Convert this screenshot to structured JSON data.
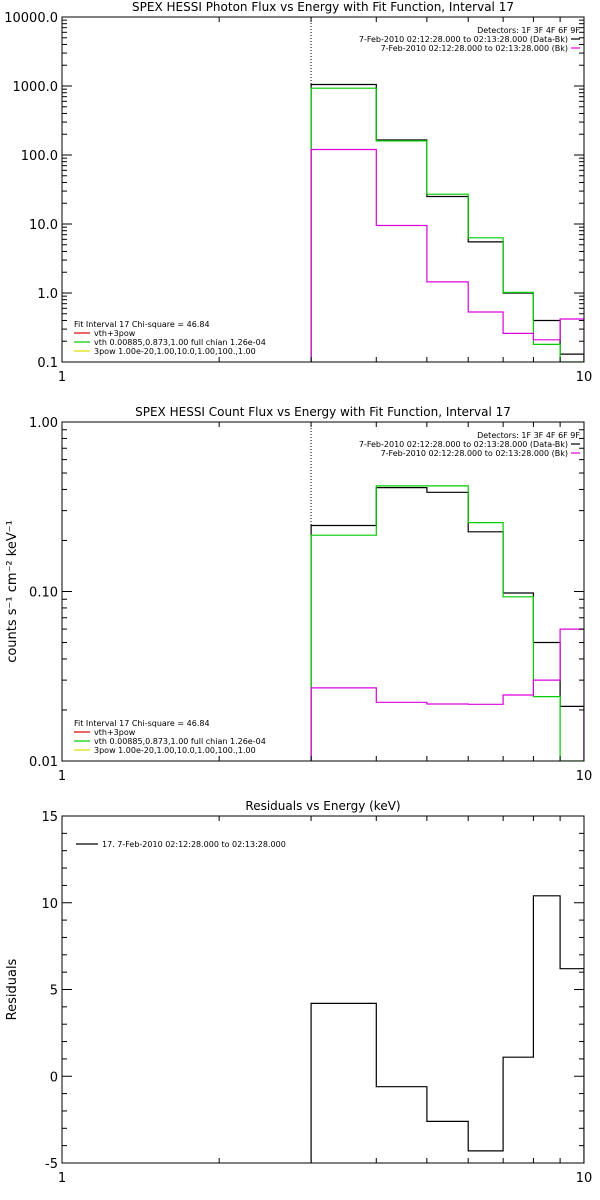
{
  "chart_data": [
    {
      "type": "line",
      "title": "SPEX HESSI Photon Flux vs Energy with Fit Function, Interval 17",
      "xscale": "log",
      "yscale": "log",
      "xlim": [
        1,
        10
      ],
      "ylim": [
        0.1,
        10000
      ],
      "xticklabels": [
        {
          "v": 1,
          "t": "1"
        },
        {
          "v": 10,
          "t": "10"
        }
      ],
      "yticklabels": [
        {
          "v": 0.1,
          "t": "0.1"
        },
        {
          "v": 1,
          "t": "1.0"
        },
        {
          "v": 10,
          "t": "10.0"
        },
        {
          "v": 100,
          "t": "100.0"
        },
        {
          "v": 1000,
          "t": "1000.0"
        },
        {
          "v": 10000,
          "t": "10000.0"
        }
      ],
      "ylabel": "",
      "xline": 3,
      "legend_tr": [
        {
          "text": "Detectors: 1F 3F 4F 6F 9F",
          "color": ""
        },
        {
          "text": "7-Feb-2010 02:12:28.000 to 02:13:28.000 (Data-Bk)",
          "color": "#000000"
        },
        {
          "text": "7-Feb-2010 02:12:28.000 to 02:13:28.000 (Bk)",
          "color": "#dd00dd"
        }
      ],
      "legend_bl": [
        {
          "text": "Fit Interval 17    Chi-square = 46.84",
          "color": ""
        },
        {
          "text": "vth+3pow",
          "color": "#dd0000"
        },
        {
          "text": "vth 0.00885,0.873,1.00  full chian 1.26e-04",
          "color": "#00cc00"
        },
        {
          "text": "3pow 1.00e-20,1.00,10.0,1.00,100.,1.00",
          "color": "#dddd00"
        }
      ],
      "edges": [
        3,
        4,
        5,
        6,
        7,
        8,
        9,
        10
      ],
      "series": [
        {
          "name": "Data-Bk",
          "color": "#000000",
          "values": [
            1050,
            165,
            25,
            5.5,
            1.0,
            0.4,
            0.13
          ]
        },
        {
          "name": "vth+3pow",
          "color": "#00cc00",
          "values": [
            930,
            160,
            27,
            6.3,
            1.02,
            0.18,
            0.08
          ]
        },
        {
          "name": "Bk",
          "color": "#dd00dd",
          "values": [
            120,
            9.5,
            1.45,
            0.53,
            0.26,
            0.21,
            0.42
          ]
        }
      ]
    },
    {
      "type": "line",
      "title": "SPEX HESSI Count Flux vs Energy with Fit Function, Interval 17",
      "xscale": "log",
      "yscale": "log",
      "xlim": [
        1,
        10
      ],
      "ylim": [
        0.01,
        1.0
      ],
      "xticklabels": [
        {
          "v": 1,
          "t": "1"
        },
        {
          "v": 10,
          "t": "10"
        }
      ],
      "yticklabels": [
        {
          "v": 0.01,
          "t": "0.01"
        },
        {
          "v": 0.1,
          "t": "0.10"
        },
        {
          "v": 1,
          "t": "1.00"
        }
      ],
      "ylabel": "counts s⁻¹ cm⁻² keV⁻¹",
      "xline": 3,
      "legend_tr": [
        {
          "text": "Detectors: 1F 3F 4F 6F 9F",
          "color": ""
        },
        {
          "text": "7-Feb-2010 02:12:28.000 to 02:13:28.000 (Data-Bk)",
          "color": "#000000"
        },
        {
          "text": "7-Feb-2010 02:12:28.000 to 02:13:28.000 (Bk)",
          "color": "#dd00dd"
        }
      ],
      "legend_bl": [
        {
          "text": "Fit Interval 17    Chi-square = 46.84",
          "color": ""
        },
        {
          "text": "vth+3pow",
          "color": "#dd0000"
        },
        {
          "text": "vth 0.00885,0.873,1.00  full chian 1.26e-04",
          "color": "#00cc00"
        },
        {
          "text": "3pow 1.00e-20,1.00,10.0,1.00,100.,1.00",
          "color": "#dddd00"
        }
      ],
      "edges": [
        3,
        4,
        5,
        6,
        7,
        8,
        9,
        10
      ],
      "series": [
        {
          "name": "Data-Bk",
          "color": "#000000",
          "values": [
            0.245,
            0.41,
            0.385,
            0.225,
            0.098,
            0.05,
            0.021
          ]
        },
        {
          "name": "vth+3pow",
          "color": "#00cc00",
          "values": [
            0.215,
            0.42,
            0.42,
            0.255,
            0.093,
            0.024,
            0.009
          ]
        },
        {
          "name": "Bk",
          "color": "#dd00dd",
          "values": [
            0.027,
            0.0222,
            0.0217,
            0.0216,
            0.0245,
            0.03,
            0.06
          ]
        }
      ]
    },
    {
      "type": "line",
      "title": "Residuals vs Energy (keV)",
      "xscale": "log",
      "yscale": "linear",
      "xlim": [
        1,
        10
      ],
      "ylim": [
        -5,
        15
      ],
      "xticklabels": [
        {
          "v": 1,
          "t": "1"
        },
        {
          "v": 10,
          "t": "10"
        }
      ],
      "yticklabels": [
        {
          "v": -5,
          "t": "-5"
        },
        {
          "v": 0,
          "t": "0"
        },
        {
          "v": 5,
          "t": "5"
        },
        {
          "v": 10,
          "t": "10"
        },
        {
          "v": 15,
          "t": "15"
        }
      ],
      "ylabel": "Residuals",
      "legend_tl": [
        {
          "text": "17.  7-Feb-2010 02:12:28.000 to 02:13:28.000",
          "color": "#000000"
        }
      ],
      "edges": [
        3,
        4,
        5,
        6,
        7,
        8,
        9,
        10
      ],
      "series": [
        {
          "name": "17",
          "color": "#000000",
          "values": [
            4.2,
            -0.6,
            -2.6,
            -4.3,
            1.1,
            10.4,
            6.2
          ]
        }
      ]
    }
  ]
}
